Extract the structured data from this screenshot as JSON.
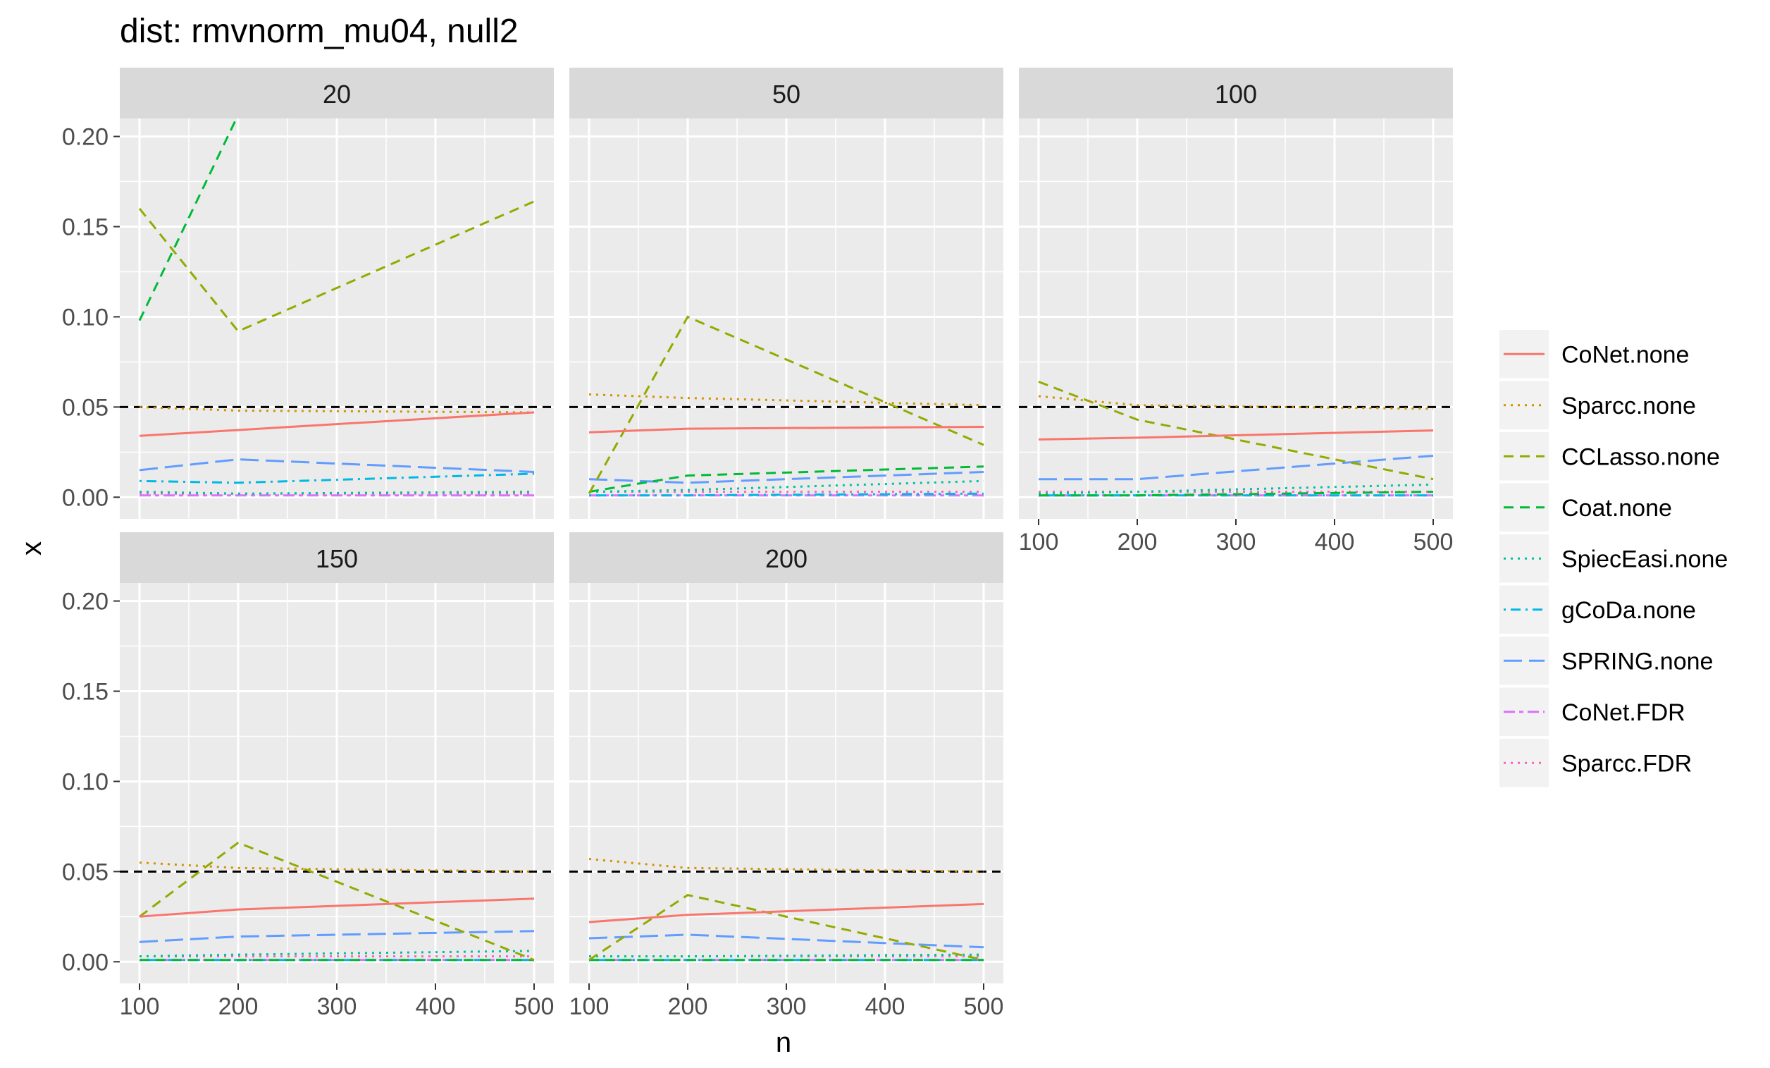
{
  "chart_data": {
    "type": "line",
    "title": "dist: rmvnorm_mu04, null2",
    "xlabel": "n",
    "ylabel": "x",
    "x": [
      100,
      200,
      300,
      400,
      500
    ],
    "xlim": [
      80,
      520
    ],
    "ylim": [
      -0.012,
      0.21
    ],
    "x_ticks": [
      "100",
      "200",
      "300",
      "400",
      "500"
    ],
    "y_ticks": [
      "0.00",
      "0.05",
      "0.10",
      "0.15",
      "0.20"
    ],
    "reference_line": 0.05,
    "grid": true,
    "legend_position": "right",
    "panels": [
      {
        "label": "20",
        "series": [
          {
            "name": "CoNet.none",
            "x": [
              100,
              500
            ],
            "values": [
              0.034,
              0.047
            ]
          },
          {
            "name": "Sparcc.none",
            "x": [
              100,
              200,
              500
            ],
            "values": [
              0.05,
              0.048,
              0.047
            ]
          },
          {
            "name": "CCLasso.none",
            "x": [
              100,
              200,
              500
            ],
            "values": [
              0.16,
              0.092,
              0.164
            ]
          },
          {
            "name": "Coat.none",
            "x": [
              100,
              200
            ],
            "values": [
              0.098,
              0.212
            ]
          },
          {
            "name": "SpiecEasi.none",
            "x": [
              100,
              200,
              500
            ],
            "values": [
              0.003,
              0.002,
              0.003
            ]
          },
          {
            "name": "gCoDa.none",
            "x": [
              100,
              200,
              500
            ],
            "values": [
              0.009,
              0.008,
              0.013
            ]
          },
          {
            "name": "SPRING.none",
            "x": [
              100,
              200,
              500
            ],
            "values": [
              0.015,
              0.021,
              0.014
            ]
          },
          {
            "name": "CoNet.FDR",
            "x": [
              100,
              200,
              500
            ],
            "values": [
              0.001,
              0.001,
              0.001
            ]
          },
          {
            "name": "Sparcc.FDR",
            "x": [
              100,
              200,
              500
            ],
            "values": [
              0.002,
              0.002,
              0.002
            ]
          }
        ]
      },
      {
        "label": "50",
        "series": [
          {
            "name": "CoNet.none",
            "x": [
              100,
              200,
              500
            ],
            "values": [
              0.036,
              0.038,
              0.039
            ]
          },
          {
            "name": "Sparcc.none",
            "x": [
              100,
              200,
              500
            ],
            "values": [
              0.057,
              0.055,
              0.051
            ]
          },
          {
            "name": "CCLasso.none",
            "x": [
              100,
              200,
              500
            ],
            "values": [
              0.002,
              0.1,
              0.029
            ]
          },
          {
            "name": "Coat.none",
            "x": [
              100,
              200,
              500
            ],
            "values": [
              0.003,
              0.012,
              0.017
            ]
          },
          {
            "name": "SpiecEasi.none",
            "x": [
              100,
              200,
              500
            ],
            "values": [
              0.003,
              0.004,
              0.009
            ]
          },
          {
            "name": "gCoDa.none",
            "x": [
              100,
              200,
              500
            ],
            "values": [
              0.001,
              0.001,
              0.002
            ]
          },
          {
            "name": "SPRING.none",
            "x": [
              100,
              200,
              500
            ],
            "values": [
              0.01,
              0.008,
              0.014
            ]
          },
          {
            "name": "CoNet.FDR",
            "x": [
              100,
              200,
              500
            ],
            "values": [
              0.001,
              0.001,
              0.001
            ]
          },
          {
            "name": "Sparcc.FDR",
            "x": [
              100,
              200,
              500
            ],
            "values": [
              0.003,
              0.003,
              0.003
            ]
          }
        ]
      },
      {
        "label": "100",
        "series": [
          {
            "name": "CoNet.none",
            "x": [
              100,
              200,
              500
            ],
            "values": [
              0.032,
              0.033,
              0.037
            ]
          },
          {
            "name": "Sparcc.none",
            "x": [
              100,
              200,
              500
            ],
            "values": [
              0.056,
              0.051,
              0.049
            ]
          },
          {
            "name": "CCLasso.none",
            "x": [
              100,
              200,
              500
            ],
            "values": [
              0.064,
              0.043,
              0.01
            ]
          },
          {
            "name": "Coat.none",
            "x": [
              100,
              200,
              500
            ],
            "values": [
              0.001,
              0.001,
              0.003
            ]
          },
          {
            "name": "SpiecEasi.none",
            "x": [
              100,
              200,
              500
            ],
            "values": [
              0.002,
              0.003,
              0.007
            ]
          },
          {
            "name": "gCoDa.none",
            "x": [
              100,
              200,
              500
            ],
            "values": [
              0.001,
              0.001,
              0.001
            ]
          },
          {
            "name": "SPRING.none",
            "x": [
              100,
              200,
              500
            ],
            "values": [
              0.01,
              0.01,
              0.023
            ]
          },
          {
            "name": "CoNet.FDR",
            "x": [
              100,
              200,
              500
            ],
            "values": [
              0.001,
              0.001,
              0.001
            ]
          },
          {
            "name": "Sparcc.FDR",
            "x": [
              100,
              200,
              500
            ],
            "values": [
              0.003,
              0.003,
              0.003
            ]
          }
        ]
      },
      {
        "label": "150",
        "series": [
          {
            "name": "CoNet.none",
            "x": [
              100,
              200,
              500
            ],
            "values": [
              0.025,
              0.029,
              0.035
            ]
          },
          {
            "name": "Sparcc.none",
            "x": [
              100,
              200,
              500
            ],
            "values": [
              0.055,
              0.052,
              0.05
            ]
          },
          {
            "name": "CCLasso.none",
            "x": [
              100,
              200,
              500
            ],
            "values": [
              0.025,
              0.066,
              0.001
            ]
          },
          {
            "name": "Coat.none",
            "x": [
              100,
              200,
              500
            ],
            "values": [
              0.001,
              0.001,
              0.001
            ]
          },
          {
            "name": "SpiecEasi.none",
            "x": [
              100,
              200,
              500
            ],
            "values": [
              0.003,
              0.004,
              0.006
            ]
          },
          {
            "name": "gCoDa.none",
            "x": [
              100,
              200,
              500
            ],
            "values": [
              0.001,
              0.001,
              0.001
            ]
          },
          {
            "name": "SPRING.none",
            "x": [
              100,
              200,
              500
            ],
            "values": [
              0.011,
              0.014,
              0.017
            ]
          },
          {
            "name": "CoNet.FDR",
            "x": [
              100,
              200,
              500
            ],
            "values": [
              0.001,
              0.001,
              0.001
            ]
          },
          {
            "name": "Sparcc.FDR",
            "x": [
              100,
              200,
              500
            ],
            "values": [
              0.003,
              0.003,
              0.003
            ]
          }
        ]
      },
      {
        "label": "200",
        "series": [
          {
            "name": "CoNet.none",
            "x": [
              100,
              200,
              500
            ],
            "values": [
              0.022,
              0.026,
              0.032
            ]
          },
          {
            "name": "Sparcc.none",
            "x": [
              100,
              200,
              500
            ],
            "values": [
              0.057,
              0.052,
              0.05
            ]
          },
          {
            "name": "CCLasso.none",
            "x": [
              100,
              200,
              500
            ],
            "values": [
              0.001,
              0.037,
              0.001
            ]
          },
          {
            "name": "Coat.none",
            "x": [
              100,
              200,
              500
            ],
            "values": [
              0.001,
              0.001,
              0.001
            ]
          },
          {
            "name": "SpiecEasi.none",
            "x": [
              100,
              200,
              500
            ],
            "values": [
              0.003,
              0.003,
              0.004
            ]
          },
          {
            "name": "gCoDa.none",
            "x": [
              100,
              200,
              500
            ],
            "values": [
              0.001,
              0.001,
              0.001
            ]
          },
          {
            "name": "SPRING.none",
            "x": [
              100,
              200,
              500
            ],
            "values": [
              0.013,
              0.015,
              0.008
            ]
          },
          {
            "name": "CoNet.FDR",
            "x": [
              100,
              200,
              500
            ],
            "values": [
              0.001,
              0.001,
              0.001
            ]
          },
          {
            "name": "Sparcc.FDR",
            "x": [
              100,
              200,
              500
            ],
            "values": [
              0.003,
              0.003,
              0.003
            ]
          }
        ]
      }
    ],
    "legend": [
      {
        "name": "CoNet.none",
        "color": "#F8766D",
        "linetype": "solid"
      },
      {
        "name": "Sparcc.none",
        "color": "#D39200",
        "linetype": "dotted"
      },
      {
        "name": "CCLasso.none",
        "color": "#93AA00",
        "linetype": "dashed"
      },
      {
        "name": "Coat.none",
        "color": "#00BA38",
        "linetype": "dashed"
      },
      {
        "name": "SpiecEasi.none",
        "color": "#00C19F",
        "linetype": "dotted"
      },
      {
        "name": "gCoDa.none",
        "color": "#00B9E3",
        "linetype": "dotdash"
      },
      {
        "name": "SPRING.none",
        "color": "#619CFF",
        "linetype": "longdash"
      },
      {
        "name": "CoNet.FDR",
        "color": "#DB72FB",
        "linetype": "twodash"
      },
      {
        "name": "Sparcc.FDR",
        "color": "#FF61C3",
        "linetype": "dotted"
      }
    ]
  }
}
